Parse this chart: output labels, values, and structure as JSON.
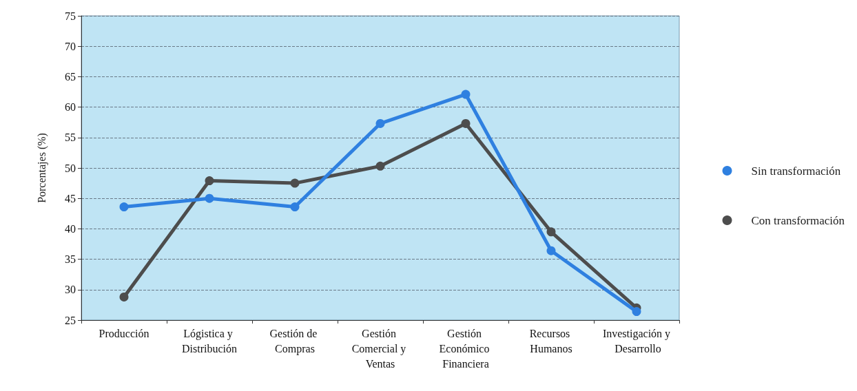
{
  "chart_data": {
    "type": "line",
    "ylabel": "Porcentajes (%)",
    "categories": [
      "Producción",
      "Lógistica y Distribución",
      "Gestión de Compras",
      "Gestión Comercial y Ventas",
      "Gestión Económico Financiera",
      "Recursos Humanos",
      "Investigación y Desarrollo"
    ],
    "series": [
      {
        "name": "Sin transformación",
        "color": "#2f80e0",
        "values": [
          43.6,
          45.0,
          43.6,
          57.3,
          62.1,
          36.4,
          26.4
        ]
      },
      {
        "name": "Con transformación",
        "color": "#4d4d4d",
        "values": [
          28.8,
          47.9,
          47.5,
          50.3,
          57.3,
          39.5,
          27.0
        ]
      }
    ],
    "ylim": [
      25,
      75
    ],
    "yticks": [
      25,
      30,
      35,
      40,
      45,
      50,
      55,
      60,
      65,
      70,
      75
    ],
    "grid": "y",
    "legend": "right",
    "marker": "circle",
    "line_style": "solid"
  }
}
